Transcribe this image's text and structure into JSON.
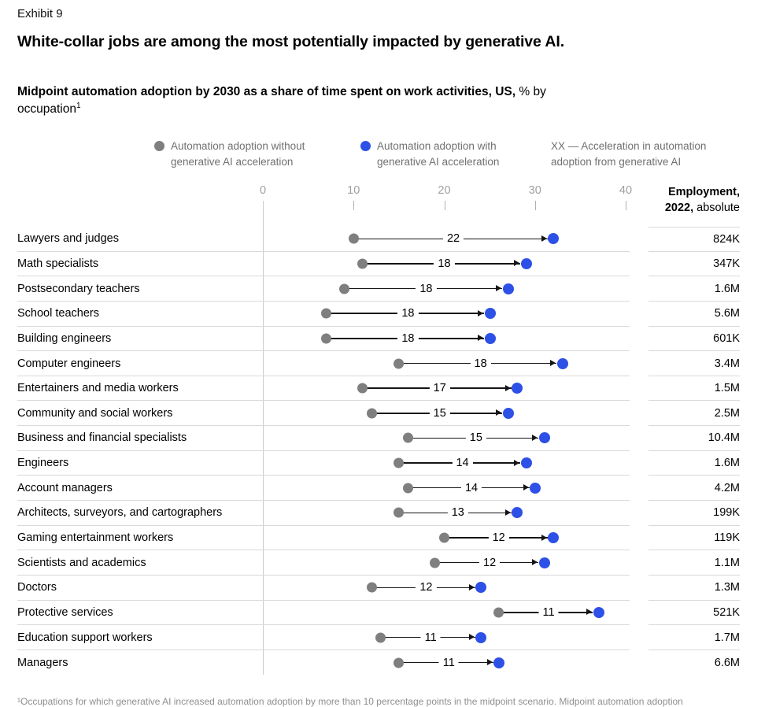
{
  "page": {
    "exhibit_label": "Exhibit 9",
    "title": "White-collar jobs are among the most potentially impacted by generative AI.",
    "subtitle_bold": "Midpoint automation adoption by 2030 as a share of time spent on work activities, US,",
    "subtitle_normal": "% by",
    "subtitle_normal_2": "occupation",
    "subtitle_superscript": "1",
    "footnote": "¹Occupations for which generative AI increased automation adoption by more than 10 percentage points in the midpoint scenario. Midpoint automation adoption"
  },
  "legend": {
    "without": {
      "label": "Automation adoption without generative AI acceleration",
      "color": "#7f7f7f"
    },
    "with": {
      "label": "Automation adoption with generative AI acceleration",
      "color": "#2d50e6"
    },
    "acceleration_note": "XX — Acceleration in automation adoption from generative AI"
  },
  "table_header": {
    "employment_line1": "Employment,",
    "employment_line2_bold": "2022,",
    "employment_line2_normal": " absolute"
  },
  "chart_data": {
    "type": "scatter",
    "variant": "dumbbell-arrow",
    "title": "Midpoint automation adoption by 2030 as a share of time spent on work activities, US, % by occupation",
    "xlabel": "% of time spent on work activities",
    "ylabel": "Occupation",
    "axis": {
      "min": 0,
      "max": 40,
      "ticks": [
        0,
        10,
        20,
        30,
        40
      ]
    },
    "legend_entries": [
      "Automation adoption without generative AI acceleration",
      "Automation adoption with generative AI acceleration",
      "XX — Acceleration in automation adoption from generative AI"
    ],
    "value_columns": [
      "without_generative_ai",
      "with_generative_ai",
      "acceleration",
      "employment_2022"
    ],
    "rows": [
      {
        "occupation": "Lawyers and judges",
        "without": 10,
        "with": 32,
        "acceleration": 22,
        "employment": "824K"
      },
      {
        "occupation": "Math specialists",
        "without": 11,
        "with": 29,
        "acceleration": 18,
        "employment": "347K"
      },
      {
        "occupation": "Postsecondary teachers",
        "without": 9,
        "with": 27,
        "acceleration": 18,
        "employment": "1.6M"
      },
      {
        "occupation": "School teachers",
        "without": 7,
        "with": 25,
        "acceleration": 18,
        "employment": "5.6M"
      },
      {
        "occupation": "Building engineers",
        "without": 7,
        "with": 25,
        "acceleration": 18,
        "employment": "601K"
      },
      {
        "occupation": "Computer engineers",
        "without": 15,
        "with": 33,
        "acceleration": 18,
        "employment": "3.4M"
      },
      {
        "occupation": "Entertainers and media workers",
        "without": 11,
        "with": 28,
        "acceleration": 17,
        "employment": "1.5M"
      },
      {
        "occupation": "Community and social workers",
        "without": 12,
        "with": 27,
        "acceleration": 15,
        "employment": "2.5M"
      },
      {
        "occupation": "Business and financial specialists",
        "without": 16,
        "with": 31,
        "acceleration": 15,
        "employment": "10.4M"
      },
      {
        "occupation": "Engineers",
        "without": 15,
        "with": 29,
        "acceleration": 14,
        "employment": "1.6M"
      },
      {
        "occupation": "Account managers",
        "without": 16,
        "with": 30,
        "acceleration": 14,
        "employment": "4.2M"
      },
      {
        "occupation": "Architects, surveyors, and cartographers",
        "without": 15,
        "with": 28,
        "acceleration": 13,
        "employment": "199K"
      },
      {
        "occupation": "Gaming entertainment workers",
        "without": 20,
        "with": 32,
        "acceleration": 12,
        "employment": "119K"
      },
      {
        "occupation": "Scientists and academics",
        "without": 19,
        "with": 31,
        "acceleration": 12,
        "employment": "1.1M"
      },
      {
        "occupation": "Doctors",
        "without": 12,
        "with": 24,
        "acceleration": 12,
        "employment": "1.3M"
      },
      {
        "occupation": "Protective services",
        "without": 26,
        "with": 37,
        "acceleration": 11,
        "employment": "521K"
      },
      {
        "occupation": "Education support workers",
        "without": 13,
        "with": 24,
        "acceleration": 11,
        "employment": "1.7M"
      },
      {
        "occupation": "Managers",
        "without": 15,
        "with": 26,
        "acceleration": 11,
        "employment": "6.6M"
      }
    ]
  },
  "colors": {
    "dot_without": "#7f7f7f",
    "dot_with": "#2d50e6",
    "arrow_line": "#151515",
    "row_separator": "#d9d9d9",
    "axis_line": "#cbcbcb",
    "tick_text": "#a0a0a0",
    "legend_text": "#707070",
    "footnote_text": "#8f8f8f"
  }
}
